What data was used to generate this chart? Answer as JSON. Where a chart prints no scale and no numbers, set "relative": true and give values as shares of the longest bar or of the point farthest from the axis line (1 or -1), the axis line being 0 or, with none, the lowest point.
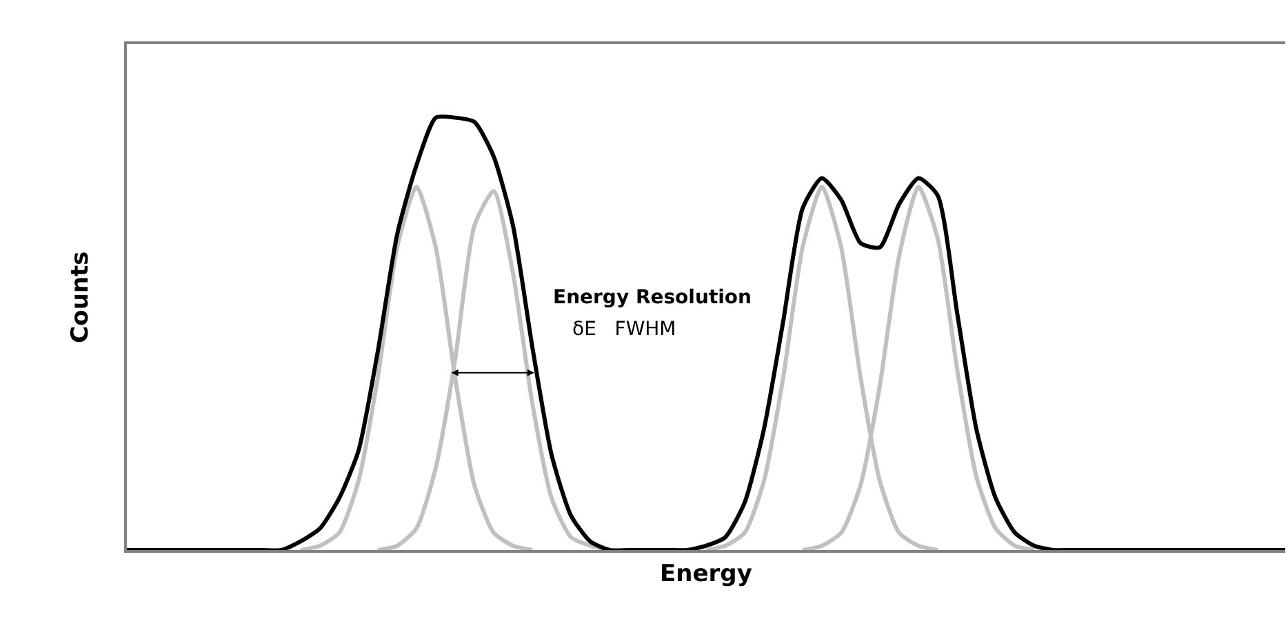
{
  "chart_data": {
    "type": "line",
    "relative": true,
    "xlabel": "Energy",
    "ylabel": "Counts",
    "tick_labels": false,
    "marker": "none",
    "line_style": "solid",
    "categories": [
      null,
      null,
      null,
      null,
      null,
      null,
      null,
      null,
      null,
      null,
      null,
      null,
      null,
      null,
      null,
      null,
      null,
      null,
      null,
      null,
      null,
      null,
      null,
      null,
      null,
      null,
      null,
      null,
      null,
      null,
      null,
      null,
      null,
      null,
      null,
      null,
      null,
      null,
      null,
      null,
      null,
      null,
      null,
      null,
      null,
      null,
      null,
      null,
      null,
      null,
      null,
      null,
      null,
      null,
      null,
      null,
      null,
      null,
      null,
      null,
      null
    ],
    "series": [
      {
        "color": "#c0c0c0",
        "values": [
          null,
          null,
          null,
          null,
          null,
          null,
          null,
          null,
          null,
          0,
          0.01,
          0.04,
          0.16,
          0.4,
          0.7,
          0.84,
          0.7,
          0.4,
          0.15,
          0.04,
          0.01,
          0,
          null,
          null,
          null,
          null,
          null,
          null,
          null,
          null,
          null,
          null,
          null,
          null,
          null,
          null,
          null,
          null,
          null,
          null,
          null,
          null,
          null,
          null,
          null,
          null,
          null,
          null,
          null,
          null,
          null,
          null,
          null,
          null,
          null,
          null,
          null,
          null,
          null,
          null,
          null
        ]
      },
      {
        "color": "#c0c0c0",
        "values": [
          null,
          null,
          null,
          null,
          null,
          null,
          null,
          null,
          null,
          null,
          null,
          null,
          null,
          0,
          0.01,
          0.05,
          0.19,
          0.44,
          0.75,
          0.83,
          0.64,
          0.34,
          0.12,
          0.03,
          0.01,
          0,
          null,
          null,
          null,
          null,
          null,
          null,
          null,
          null,
          null,
          null,
          null,
          null,
          null,
          null,
          null,
          null,
          null,
          null,
          null,
          null,
          null,
          null,
          null,
          null,
          null,
          null,
          null,
          null,
          null,
          null,
          null,
          null,
          null,
          null,
          null
        ]
      },
      {
        "color": "#c0c0c0",
        "values": [
          null,
          null,
          null,
          null,
          null,
          null,
          null,
          null,
          null,
          null,
          null,
          null,
          null,
          null,
          null,
          null,
          null,
          null,
          null,
          null,
          null,
          null,
          null,
          null,
          null,
          null,
          null,
          null,
          null,
          null,
          0,
          0.01,
          0.04,
          0.16,
          0.4,
          0.7,
          0.84,
          0.7,
          0.4,
          0.16,
          0.04,
          0.01,
          0,
          null,
          null,
          null,
          null,
          null,
          null,
          null,
          null,
          null,
          null,
          null,
          null,
          null,
          null,
          null,
          null,
          null,
          null
        ]
      },
      {
        "color": "#c0c0c0",
        "values": [
          null,
          null,
          null,
          null,
          null,
          null,
          null,
          null,
          null,
          null,
          null,
          null,
          null,
          null,
          null,
          null,
          null,
          null,
          null,
          null,
          null,
          null,
          null,
          null,
          null,
          null,
          null,
          null,
          null,
          null,
          null,
          null,
          null,
          null,
          null,
          0,
          0.01,
          0.04,
          0.15,
          0.38,
          0.68,
          0.84,
          0.72,
          0.42,
          0.17,
          0.05,
          0.01,
          0,
          null,
          null,
          null,
          null,
          null,
          null,
          null,
          null,
          null,
          null,
          null,
          null,
          null
        ]
      },
      {
        "color": "#000000",
        "values": [
          0,
          0,
          0,
          0,
          0,
          0,
          0,
          0,
          0,
          0.02,
          0.05,
          0.12,
          0.23,
          0.46,
          0.73,
          0.89,
          1.0,
          1.0,
          0.99,
          0.91,
          0.75,
          0.47,
          0.22,
          0.08,
          0.02,
          0,
          0,
          0,
          0,
          0,
          0.01,
          0.03,
          0.11,
          0.28,
          0.53,
          0.79,
          0.86,
          0.81,
          0.71,
          0.7,
          0.8,
          0.86,
          0.82,
          0.55,
          0.28,
          0.12,
          0.04,
          0.01,
          0,
          0,
          0,
          0,
          0,
          0,
          0,
          0,
          0,
          0,
          0,
          0,
          0
        ]
      }
    ],
    "annotations": [
      "Energy Resolution",
      "δE   FWHM"
    ]
  }
}
